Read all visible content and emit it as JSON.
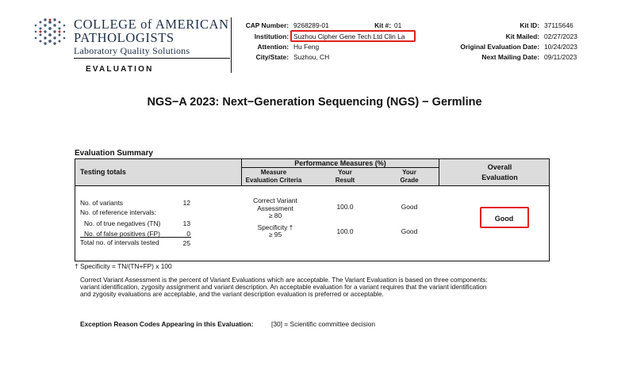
{
  "logo": {
    "line1": "COLLEGE of AMERICAN",
    "line2": "PATHOLOGISTS",
    "line3": "Laboratory Quality Solutions",
    "icon": "cap-dot-grid-logo",
    "color": "#1f2f4a"
  },
  "section_label": "EVALUATION",
  "header": {
    "cap_number_label": "CAP Number:",
    "cap_number": "9268289-01",
    "kit_label": "Kit #:",
    "kit": "01",
    "institution_label": "Institution:",
    "institution": "Suzhou Cipher Gene Tech Ltd Clin La",
    "attention_label": "Attention:",
    "attention": "Hu Feng",
    "city_label": "City/State:",
    "city": "Suzhou, CH",
    "kit_id_label": "Kit ID:",
    "kit_id": "37115646",
    "kit_mailed_label": "Kit Mailed:",
    "kit_mailed": "02/27/2023",
    "orig_eval_label": "Original Evaluation Date:",
    "orig_eval": "10/24/2023",
    "next_mailing_label": "Next Mailing Date:",
    "next_mailing": "09/11/2023"
  },
  "title": "NGS−A 2023: Next−Generation Sequencing (NGS) − Germline",
  "summary": {
    "title": "Evaluation Summary",
    "testing_totals": "Testing totals",
    "perf_measures": "Performance Measures (%)",
    "col_measure_1": "Measure",
    "col_measure_2": "Evaluation Criteria",
    "col_result_1": "Your",
    "col_result_2": "Result",
    "col_grade_1": "Your",
    "col_grade_2": "Grade",
    "col_overall_1": "Overall",
    "col_overall_2": "Evaluation",
    "rows": [
      {
        "label": "No. of variants",
        "value": "12"
      },
      {
        "label": "No. of reference intervals:",
        "value": ""
      },
      {
        "label": "No. of true negatives (TN)",
        "value": "13"
      },
      {
        "label": "No. of false positives (FP)",
        "value": "0"
      },
      {
        "label": "Total no. of intervals tested",
        "value": "25"
      }
    ],
    "measures": [
      {
        "name": "Correct Variant Assessment",
        "criteria": "≥ 80",
        "result": "100.0",
        "grade": "Good"
      },
      {
        "name": "Specificity †",
        "criteria": "≥ 95",
        "result": "100.0",
        "grade": "Good"
      }
    ],
    "overall": "Good"
  },
  "specificity_note": "† Specificity = TN/(TN+FP) x 100",
  "cva_note": [
    "Correct Variant Assessment is the percent of Variant Evaluations which are acceptable. The Variant Evaluation is based on three components:",
    "variant identification, zygosity assignment and variant description. An acceptable evaluation for a variant requires that the variant identification",
    "and zygosity evaluations are acceptable, and the variant description evaluation is preferred or acceptable."
  ],
  "exception": {
    "label": "Exception Reason Codes Appearing in this Evaluation:",
    "code": "[30] = Scientific committee decision"
  },
  "colors": {
    "highlight": "#e0201b",
    "table_header_bg": "#dcdcdc"
  }
}
